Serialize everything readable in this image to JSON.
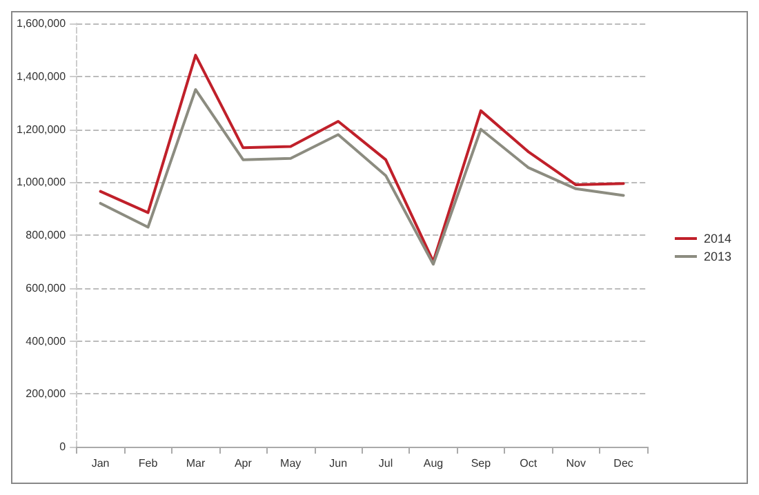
{
  "chart_data": {
    "type": "line",
    "categories": [
      "Jan",
      "Feb",
      "Mar",
      "Apr",
      "May",
      "Jun",
      "Jul",
      "Aug",
      "Sep",
      "Oct",
      "Nov",
      "Dec"
    ],
    "series": [
      {
        "name": "2014",
        "color": "#c0202a",
        "values": [
          965000,
          885000,
          1480000,
          1130000,
          1135000,
          1230000,
          1085000,
          700000,
          1270000,
          1115000,
          990000,
          995000
        ]
      },
      {
        "name": "2013",
        "color": "#8c8c80",
        "values": [
          920000,
          830000,
          1350000,
          1085000,
          1090000,
          1180000,
          1025000,
          690000,
          1200000,
          1055000,
          975000,
          950000
        ]
      }
    ],
    "ylim": [
      0,
      1600000
    ],
    "yticks": [
      0,
      {
        "value": 200000,
        "label": "200,000"
      },
      {
        "value": 400000,
        "label": "400,000"
      },
      {
        "value": 600000,
        "label": "600,000"
      },
      {
        "value": 800000,
        "label": "800,000"
      },
      {
        "value": 1000000,
        "label": "1,000,000"
      },
      {
        "value": 1200000,
        "label": "1,200,000"
      },
      {
        "value": 1400000,
        "label": "1,400,000"
      },
      {
        "value": 1600000,
        "label": "1,600,000"
      }
    ],
    "grid": "y",
    "legend": "right",
    "marker": "none",
    "line_style": "solid"
  }
}
